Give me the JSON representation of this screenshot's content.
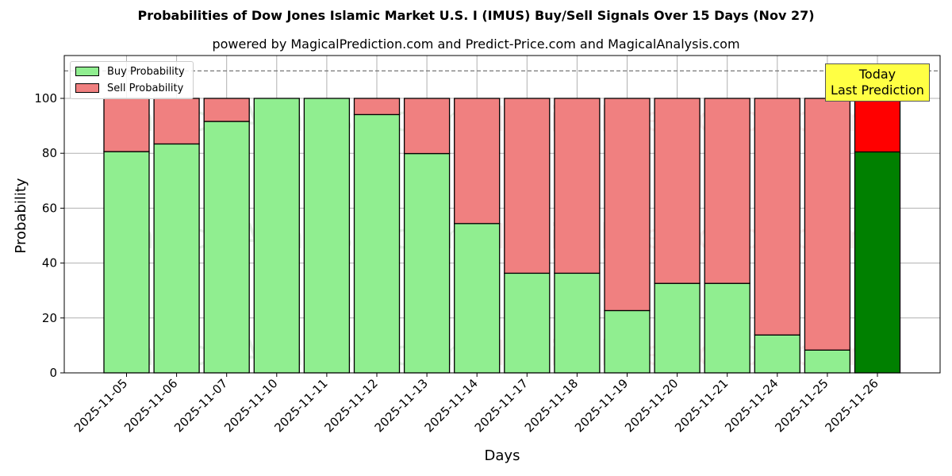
{
  "chart_data": {
    "type": "bar",
    "stacked": true,
    "title": "Probabilities of Dow Jones Islamic Market U.S. I (IMUS) Buy/Sell Signals Over 15 Days (Nov 27)",
    "subtitle": "powered by MagicalPrediction.com and Predict-Price.com and MagicalAnalysis.com",
    "xlabel": "Days",
    "ylabel": "Probability",
    "ylim": [
      0,
      115
    ],
    "yticks": [
      0,
      20,
      40,
      60,
      80,
      100
    ],
    "reference_line": 110,
    "grid": true,
    "legend_position": "upper left",
    "categories": [
      "2025-11-05",
      "2025-11-06",
      "2025-11-07",
      "2025-11-10",
      "2025-11-11",
      "2025-11-12",
      "2025-11-13",
      "2025-11-14",
      "2025-11-17",
      "2025-11-18",
      "2025-11-19",
      "2025-11-20",
      "2025-11-21",
      "2025-11-24",
      "2025-11-25",
      "2025-11-26"
    ],
    "series": [
      {
        "name": "Buy Probability",
        "color": "#90ee90",
        "values": [
          80.6,
          83.4,
          91.6,
          100.0,
          100.0,
          94.1,
          79.9,
          54.4,
          36.3,
          36.3,
          22.7,
          32.6,
          32.6,
          13.8,
          8.3,
          80.5
        ]
      },
      {
        "name": "Sell Probability",
        "color": "#f08080",
        "values": [
          19.4,
          16.6,
          8.4,
          0.0,
          0.0,
          5.9,
          20.1,
          45.6,
          63.7,
          63.7,
          77.3,
          67.4,
          67.4,
          86.2,
          91.7,
          19.5
        ]
      }
    ],
    "highlight": {
      "index": 15,
      "buy_color": "#008000",
      "sell_color": "#ff0000"
    },
    "annotation": {
      "line1": "Today",
      "line2": "Last Prediction"
    },
    "watermarks": [
      "MagicalAnalysis.com",
      "MagicalPrediction.com"
    ]
  }
}
